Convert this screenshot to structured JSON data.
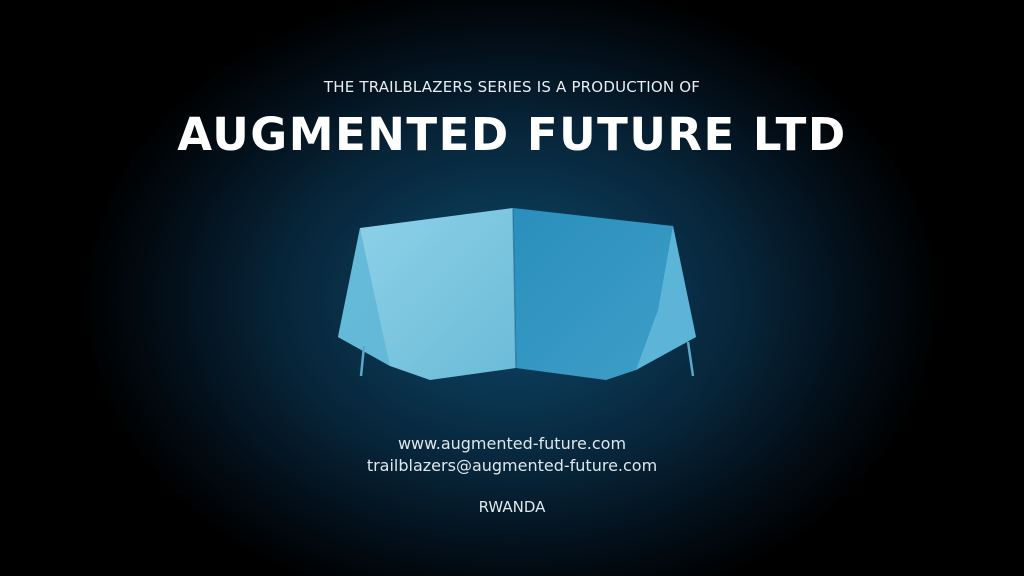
{
  "slide": {
    "subtitle": "THE TRAILBLAZERS SERIES IS A PRODUCTION OF",
    "title": "AUGMENTED FUTURE LTD",
    "logo": "headset-logo-icon",
    "website": "www.augmented-future.com",
    "email": "trailblazers@augmented-future.com",
    "country": "RWANDA"
  },
  "colors": {
    "background_center": "#0d4766",
    "background_edge": "#000000",
    "logo_light": "#7cc8e0",
    "logo_dark": "#2f93bf",
    "text": "#ffffff"
  }
}
